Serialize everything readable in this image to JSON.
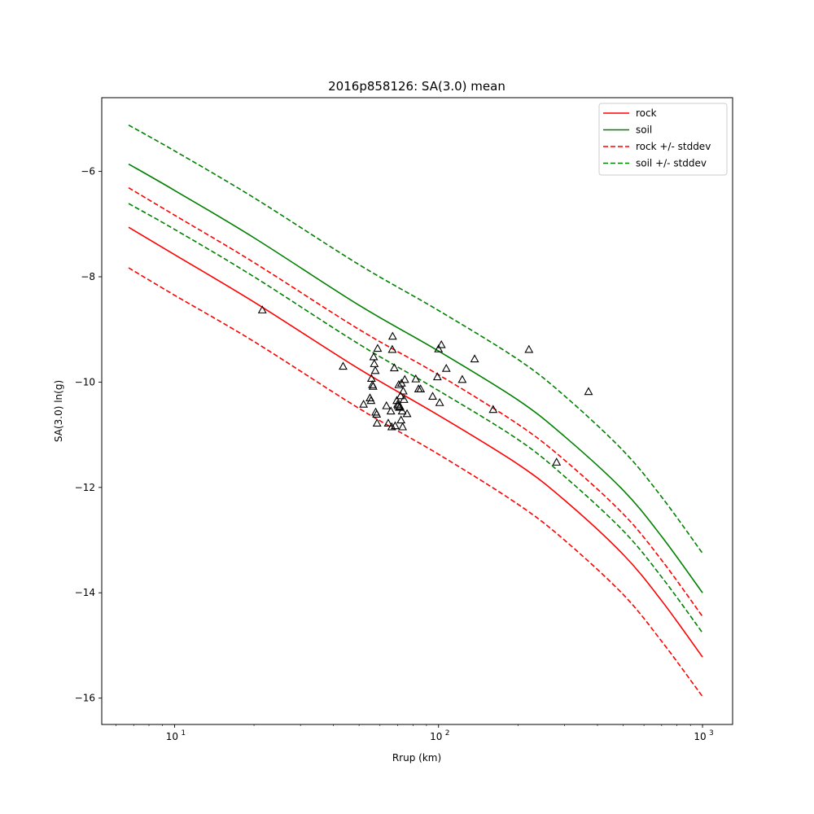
{
  "chart_data": {
    "type": "line",
    "title": "2016p858126: SA(3.0) mean",
    "xlabel": "Rrup (km)",
    "ylabel": "SA(3.0) ln(g)",
    "xscale": "log",
    "xlim": [
      5.3,
      1300
    ],
    "ylim": [
      -16.5,
      -4.6
    ],
    "x_ticks": [
      {
        "value": 10,
        "label": "10",
        "exp": "1"
      },
      {
        "value": 100,
        "label": "10",
        "exp": "2"
      },
      {
        "value": 1000,
        "label": "10",
        "exp": "3"
      }
    ],
    "y_ticks": [
      {
        "value": -6,
        "label": "−6"
      },
      {
        "value": -8,
        "label": "−8"
      },
      {
        "value": -10,
        "label": "−10"
      },
      {
        "value": -12,
        "label": "−12"
      },
      {
        "value": -14,
        "label": "−14"
      },
      {
        "value": -16,
        "label": "−16"
      }
    ],
    "grid": false,
    "legend_position": "top-right",
    "x": [
      6.7,
      10,
      20,
      50,
      100,
      200,
      300,
      500,
      700,
      1000
    ],
    "series": [
      {
        "name": "rock",
        "color": "#ff0000",
        "style": "solid",
        "values": [
          -7.06,
          -7.58,
          -8.48,
          -9.75,
          -10.63,
          -11.56,
          -12.24,
          -13.27,
          -14.15,
          -15.22
        ]
      },
      {
        "name": "soil",
        "color": "#008000",
        "style": "solid",
        "values": [
          -5.86,
          -6.36,
          -7.26,
          -8.54,
          -9.41,
          -10.34,
          -11.03,
          -12.05,
          -12.93,
          -14.0
        ]
      },
      {
        "name": "rock +/- stddev",
        "color": "#ff0000",
        "style": "dashed",
        "values": [
          -6.31,
          -6.83,
          -7.73,
          -9.0,
          -9.86,
          -10.8,
          -11.48,
          -12.5,
          -13.38,
          -14.45
        ]
      },
      {
        "name": "rock +/- stddev",
        "color": "#ff0000",
        "style": "dashed",
        "legend": false,
        "values": [
          -7.83,
          -8.35,
          -9.23,
          -10.5,
          -11.37,
          -12.32,
          -13.0,
          -14.03,
          -14.92,
          -15.97
        ]
      },
      {
        "name": "soil +/- stddev",
        "color": "#008000",
        "style": "dashed",
        "values": [
          -5.12,
          -5.61,
          -6.5,
          -7.77,
          -8.64,
          -9.57,
          -10.26,
          -11.3,
          -12.18,
          -13.25
        ]
      },
      {
        "name": "soil +/- stddev",
        "color": "#008000",
        "style": "dashed",
        "legend": false,
        "values": [
          -6.61,
          -7.1,
          -8.0,
          -9.28,
          -10.16,
          -11.09,
          -11.79,
          -12.82,
          -13.7,
          -14.76
        ]
      }
    ],
    "observations": {
      "marker": "triangle",
      "color": "#000000",
      "points": [
        [
          21.5,
          -8.63
        ],
        [
          43.5,
          -9.7
        ],
        [
          52,
          -10.42
        ],
        [
          55,
          -10.3
        ],
        [
          55.5,
          -10.35
        ],
        [
          55.7,
          -9.93
        ],
        [
          56.2,
          -10.05
        ],
        [
          56.5,
          -10.08
        ],
        [
          56.8,
          -9.52
        ],
        [
          57.1,
          -9.65
        ],
        [
          57.6,
          -9.78
        ],
        [
          57.8,
          -10.57
        ],
        [
          58.3,
          -10.61
        ],
        [
          58.5,
          -10.78
        ],
        [
          58.8,
          -9.36
        ],
        [
          63.5,
          -10.45
        ],
        [
          64.5,
          -10.78
        ],
        [
          66,
          -10.55
        ],
        [
          66.5,
          -10.85
        ],
        [
          66.8,
          -9.38
        ],
        [
          67,
          -9.13
        ],
        [
          68,
          -9.73
        ],
        [
          68.5,
          -10.83
        ],
        [
          69.5,
          -10.35
        ],
        [
          70,
          -10.42
        ],
        [
          70.3,
          -10.45
        ],
        [
          70.7,
          -10.05
        ],
        [
          71,
          -10.48
        ],
        [
          71.4,
          -10.46
        ],
        [
          71.8,
          -10.26
        ],
        [
          72.1,
          -10.72
        ],
        [
          72.4,
          -10.02
        ],
        [
          72.8,
          -10.55
        ],
        [
          73.1,
          -10.85
        ],
        [
          73.5,
          -10.17
        ],
        [
          74,
          -10.33
        ],
        [
          74.5,
          -9.95
        ],
        [
          76,
          -10.6
        ],
        [
          82,
          -9.94
        ],
        [
          84,
          -10.13
        ],
        [
          85.5,
          -10.13
        ],
        [
          95,
          -10.27
        ],
        [
          99,
          -9.9
        ],
        [
          100,
          -9.37
        ],
        [
          101,
          -10.39
        ],
        [
          102.5,
          -9.29
        ],
        [
          107,
          -9.74
        ],
        [
          123,
          -9.95
        ],
        [
          137,
          -9.56
        ],
        [
          161,
          -10.52
        ],
        [
          220,
          -9.38
        ],
        [
          280,
          -11.52
        ],
        [
          370,
          -10.18
        ]
      ]
    }
  }
}
